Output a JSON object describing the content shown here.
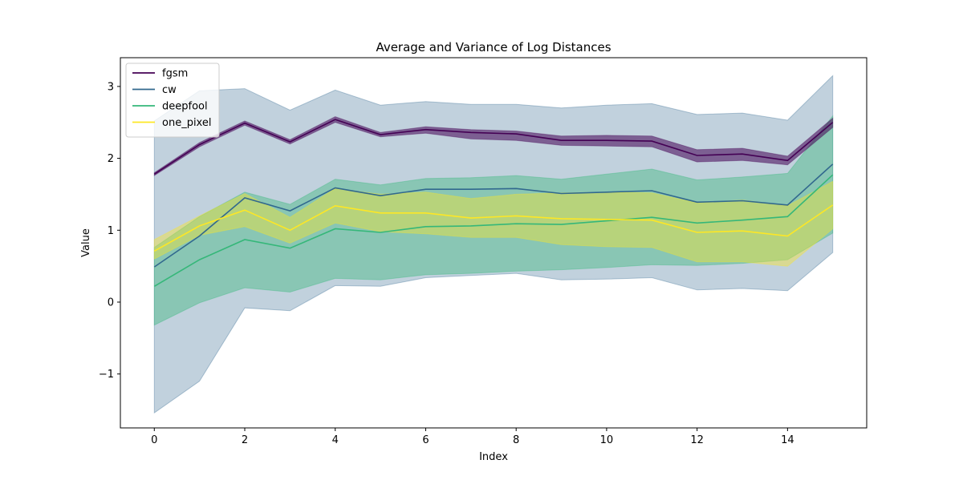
{
  "chart_data": {
    "type": "line",
    "title": "Average and Variance of Log Distances",
    "xlabel": "Index",
    "ylabel": "Value",
    "xlim": [
      -0.75,
      15.75
    ],
    "ylim": [
      -1.75,
      3.4
    ],
    "xticks": [
      0,
      2,
      4,
      6,
      8,
      10,
      12,
      14
    ],
    "yticks": [
      -1,
      0,
      1,
      2,
      3
    ],
    "ytick_labels": [
      "−1",
      "0",
      "1",
      "2",
      "3"
    ],
    "legend_position": "top-left",
    "grid": false,
    "x": [
      0,
      1,
      2,
      3,
      4,
      5,
      6,
      7,
      8,
      9,
      10,
      11,
      12,
      13,
      14,
      15
    ],
    "series": [
      {
        "name": "fgsm",
        "color": "#440154",
        "fill_opacity": 0.55,
        "mean": [
          1.78,
          2.19,
          2.49,
          2.23,
          2.54,
          2.33,
          2.4,
          2.36,
          2.34,
          2.25,
          2.25,
          2.24,
          2.04,
          2.06,
          1.97,
          2.5
        ],
        "lower": [
          1.76,
          2.16,
          2.46,
          2.2,
          2.5,
          2.3,
          2.35,
          2.27,
          2.25,
          2.18,
          2.17,
          2.16,
          1.95,
          1.97,
          1.91,
          2.43
        ],
        "upper": [
          1.8,
          2.22,
          2.52,
          2.26,
          2.58,
          2.36,
          2.44,
          2.4,
          2.38,
          2.31,
          2.32,
          2.31,
          2.12,
          2.14,
          2.03,
          2.56
        ]
      },
      {
        "name": "cw",
        "color": "#31688e",
        "fill_opacity": 0.3,
        "mean": [
          0.49,
          0.92,
          1.45,
          1.27,
          1.59,
          1.48,
          1.57,
          1.57,
          1.58,
          1.51,
          1.53,
          1.55,
          1.39,
          1.41,
          1.35,
          1.92
        ],
        "lower": [
          -1.54,
          -1.1,
          -0.08,
          -0.12,
          0.23,
          0.22,
          0.34,
          0.37,
          0.4,
          0.31,
          0.32,
          0.34,
          0.17,
          0.19,
          0.16,
          0.69
        ],
        "upper": [
          2.52,
          2.94,
          2.97,
          2.67,
          2.95,
          2.74,
          2.79,
          2.75,
          2.75,
          2.7,
          2.74,
          2.76,
          2.61,
          2.63,
          2.53,
          3.15
        ]
      },
      {
        "name": "deepfool",
        "color": "#35b779",
        "fill_opacity": 0.4,
        "mean": [
          0.22,
          0.59,
          0.87,
          0.75,
          1.02,
          0.97,
          1.05,
          1.06,
          1.09,
          1.08,
          1.13,
          1.18,
          1.1,
          1.14,
          1.19,
          1.77
        ],
        "lower": [
          -0.32,
          -0.01,
          0.2,
          0.14,
          0.33,
          0.31,
          0.38,
          0.4,
          0.43,
          0.45,
          0.48,
          0.52,
          0.51,
          0.54,
          0.59,
          0.96
        ],
        "upper": [
          0.76,
          1.19,
          1.53,
          1.36,
          1.71,
          1.63,
          1.72,
          1.73,
          1.76,
          1.71,
          1.78,
          1.85,
          1.7,
          1.74,
          1.79,
          2.59
        ]
      },
      {
        "name": "one_pixel",
        "color": "#fde725",
        "fill_opacity": 0.4,
        "mean": [
          0.71,
          1.06,
          1.28,
          1.0,
          1.34,
          1.24,
          1.24,
          1.17,
          1.2,
          1.16,
          1.15,
          1.14,
          0.97,
          0.99,
          0.92,
          1.35
        ],
        "lower": [
          0.6,
          0.93,
          1.05,
          0.82,
          1.1,
          0.98,
          0.95,
          0.9,
          0.9,
          0.8,
          0.77,
          0.76,
          0.56,
          0.56,
          0.5,
          1.02
        ],
        "upper": [
          0.87,
          1.2,
          1.51,
          1.18,
          1.58,
          1.5,
          1.53,
          1.44,
          1.5,
          1.52,
          1.53,
          1.52,
          1.38,
          1.42,
          1.34,
          1.68
        ]
      }
    ]
  }
}
